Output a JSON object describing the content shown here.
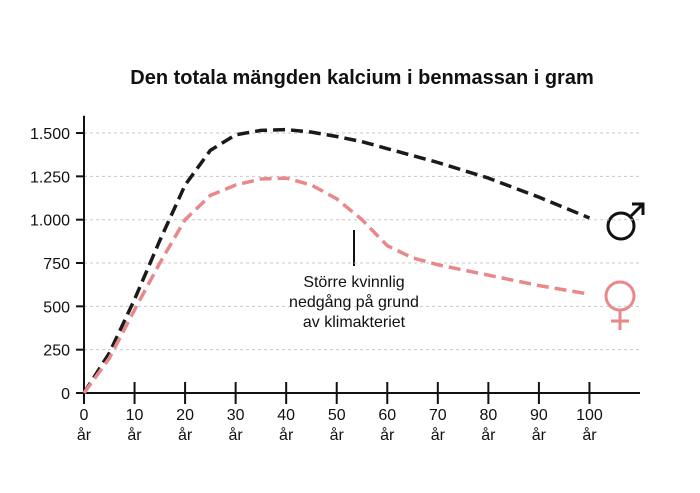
{
  "chart_data": {
    "type": "line",
    "title": "Den totala mängden kalcium i benmassan i gram",
    "x": [
      0,
      5,
      10,
      15,
      20,
      25,
      30,
      35,
      40,
      45,
      50,
      55,
      60,
      65,
      70,
      80,
      90,
      100
    ],
    "series": [
      {
        "color": "#1a1a1a",
        "values": [
          0,
          230,
          540,
          880,
          1200,
          1400,
          1490,
          1515,
          1520,
          1505,
          1480,
          1450,
          1410,
          1370,
          1330,
          1240,
          1130,
          1010
        ]
      },
      {
        "color": "#e8888a",
        "values": [
          0,
          200,
          480,
          750,
          1000,
          1140,
          1200,
          1235,
          1240,
          1200,
          1120,
          1000,
          850,
          780,
          740,
          680,
          620,
          570
        ]
      }
    ],
    "annotation": "Större kvinnlig\nnedgång på grund\nav klimakteriet",
    "xlim": [
      0,
      110
    ],
    "ylim": [
      0,
      1600
    ],
    "xticks": [
      {
        "value": 0,
        "label": "0\når"
      },
      {
        "value": 10,
        "label": "10\når"
      },
      {
        "value": 20,
        "label": "20\når"
      },
      {
        "value": 30,
        "label": "30\når"
      },
      {
        "value": 40,
        "label": "40\når"
      },
      {
        "value": 50,
        "label": "50\når"
      },
      {
        "value": 60,
        "label": "60\når"
      },
      {
        "value": 70,
        "label": "70\når"
      },
      {
        "value": 80,
        "label": "80\når"
      },
      {
        "value": 90,
        "label": "90\når"
      },
      {
        "value": 100,
        "label": "100\når"
      }
    ],
    "yticks": [
      0,
      250,
      500,
      750,
      {
        "value": 1000,
        "label": "1.000"
      },
      {
        "value": 1250,
        "label": "1.250"
      },
      {
        "value": 1500,
        "label": "1.500"
      }
    ],
    "grid": true
  }
}
